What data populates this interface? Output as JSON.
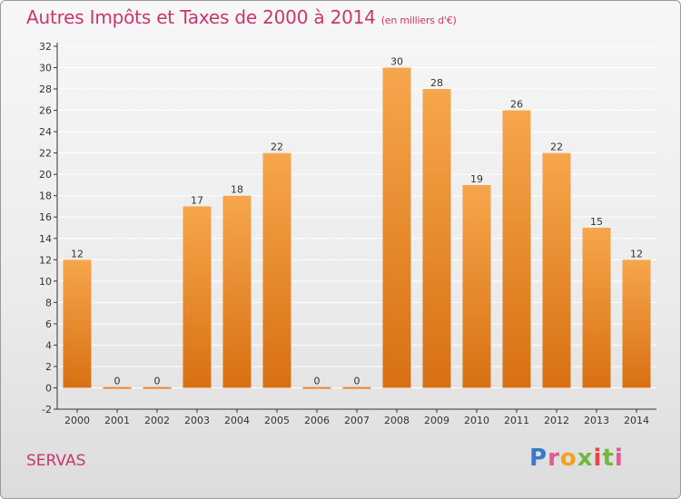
{
  "header": {
    "title": "Autres Impôts et Taxes de 2000 à 2014",
    "subtitle": "(en milliers d'€)"
  },
  "footer": {
    "commune": "SERVAS",
    "logo_text": "Proxiti"
  },
  "colors": {
    "title": "#c8366f",
    "bar_top": "#f7a64c",
    "bar_bottom": "#d87012",
    "axis": "#333333",
    "grid": "#ffffff"
  },
  "chart_data": {
    "type": "bar",
    "title": "Autres Impôts et Taxes de 2000 à 2014",
    "xlabel": "",
    "ylabel": "",
    "categories": [
      "2000",
      "2001",
      "2002",
      "2003",
      "2004",
      "2005",
      "2006",
      "2007",
      "2008",
      "2009",
      "2010",
      "2011",
      "2012",
      "2013",
      "2014"
    ],
    "values": [
      12,
      0,
      0,
      17,
      18,
      22,
      0,
      0,
      30,
      28,
      19,
      26,
      22,
      15,
      12
    ],
    "ylim": [
      -2,
      32
    ],
    "yticks": [
      -2,
      0,
      2,
      4,
      6,
      8,
      10,
      12,
      14,
      16,
      18,
      20,
      22,
      24,
      26,
      28,
      30,
      32
    ],
    "grid": true,
    "legend": "none",
    "data_labels": true
  }
}
